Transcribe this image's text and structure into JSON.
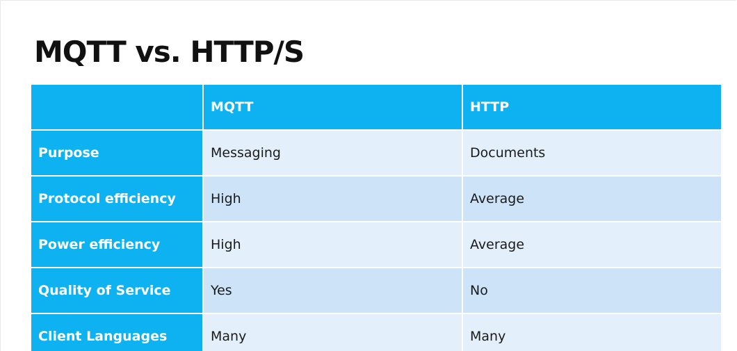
{
  "slide": {
    "title": "MQTT vs. HTTP/S"
  },
  "table": {
    "headers": [
      "",
      "MQTT",
      "HTTP"
    ],
    "rows": [
      {
        "label": "Purpose",
        "mqtt": "Messaging",
        "http": "Documents"
      },
      {
        "label": "Protocol efficiency",
        "mqtt": "High",
        "http": "Average"
      },
      {
        "label": "Power efficiency",
        "mqtt": "High",
        "http": "Average"
      },
      {
        "label": "Quality of Service",
        "mqtt": "Yes",
        "http": "No"
      },
      {
        "label": "Client Languages",
        "mqtt": "Many",
        "http": "Many"
      }
    ]
  },
  "colors": {
    "header_bg": "#0fb2f0",
    "row_light": "#e3f0fb",
    "row_dark": "#cde3f8"
  }
}
